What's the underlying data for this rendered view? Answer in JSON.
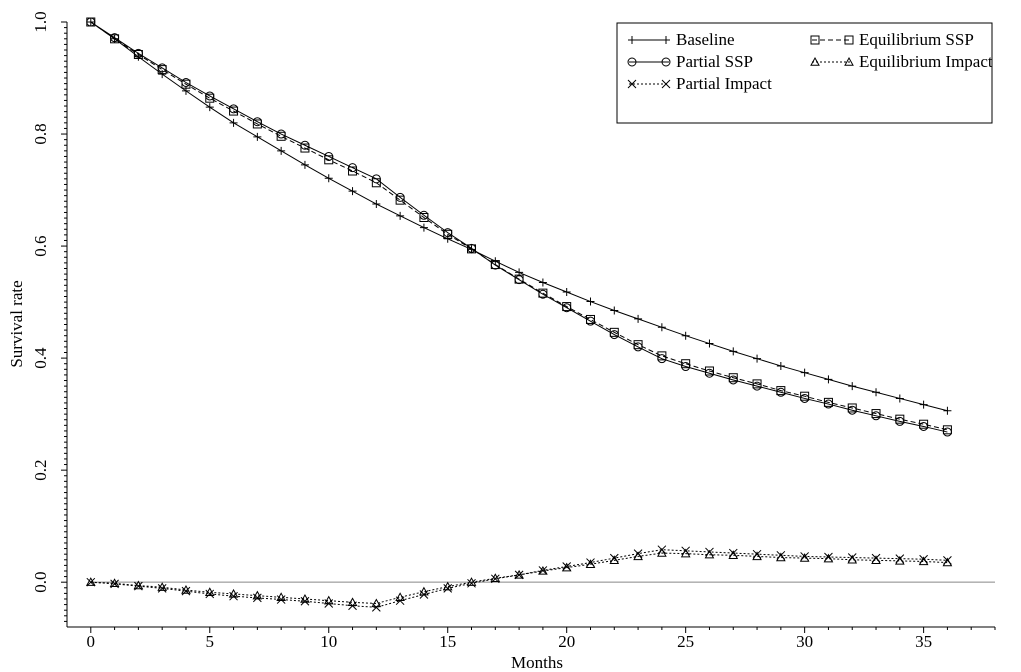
{
  "chart_data": {
    "type": "line",
    "title": "",
    "xlabel": "Months",
    "ylabel": "Survival rate",
    "xlim": [
      -1,
      38
    ],
    "ylim": [
      -0.08,
      1.0
    ],
    "x_ticks": [
      0,
      5,
      10,
      15,
      20,
      25,
      30,
      35
    ],
    "y_ticks": [
      0.0,
      0.2,
      0.4,
      0.6,
      0.8,
      1.0
    ],
    "y_tick_labels": [
      "0.0",
      "0.2",
      "0.4",
      "0.6",
      "0.8",
      "1.0"
    ],
    "reference_line_y": 0,
    "grid": false,
    "legend_placement": "top-right",
    "x": [
      0,
      1,
      2,
      3,
      4,
      5,
      6,
      7,
      8,
      9,
      10,
      11,
      12,
      13,
      14,
      15,
      16,
      17,
      18,
      19,
      20,
      21,
      22,
      23,
      24,
      25,
      26,
      27,
      28,
      29,
      30,
      31,
      32,
      33,
      34,
      35,
      36
    ],
    "series": [
      {
        "name": "Baseline",
        "marker": "plus",
        "dash": "solid",
        "color": "#000000",
        "values": [
          1.0,
          0.97,
          0.938,
          0.907,
          0.877,
          0.848,
          0.82,
          0.795,
          0.77,
          0.745,
          0.721,
          0.698,
          0.675,
          0.654,
          0.633,
          0.613,
          0.594,
          0.573,
          0.553,
          0.535,
          0.518,
          0.501,
          0.485,
          0.47,
          0.455,
          0.44,
          0.426,
          0.412,
          0.399,
          0.386,
          0.374,
          0.362,
          0.35,
          0.339,
          0.328,
          0.317,
          0.306
        ]
      },
      {
        "name": "Partial SSP",
        "marker": "circle",
        "dash": "solid",
        "color": "#000000",
        "values": [
          1.0,
          0.972,
          0.944,
          0.918,
          0.892,
          0.868,
          0.845,
          0.822,
          0.8,
          0.78,
          0.76,
          0.74,
          0.72,
          0.687,
          0.655,
          0.624,
          0.596,
          0.566,
          0.54,
          0.514,
          0.49,
          0.466,
          0.442,
          0.42,
          0.399,
          0.385,
          0.373,
          0.361,
          0.35,
          0.339,
          0.328,
          0.318,
          0.307,
          0.297,
          0.287,
          0.278,
          0.268
        ]
      },
      {
        "name": "Partial Impact",
        "marker": "x",
        "dash": "dotted",
        "color": "#000000",
        "values": [
          0.0,
          -0.003,
          -0.007,
          -0.011,
          -0.016,
          -0.021,
          -0.025,
          -0.028,
          -0.031,
          -0.034,
          -0.038,
          -0.042,
          -0.045,
          -0.033,
          -0.022,
          -0.011,
          -0.002,
          0.006,
          0.013,
          0.021,
          0.028,
          0.035,
          0.043,
          0.051,
          0.058,
          0.056,
          0.054,
          0.052,
          0.05,
          0.048,
          0.046,
          0.045,
          0.044,
          0.043,
          0.042,
          0.041,
          0.039
        ]
      },
      {
        "name": "Equilibrium SSP",
        "marker": "square",
        "dash": "dashed",
        "color": "#000000",
        "values": [
          1.0,
          0.97,
          0.942,
          0.915,
          0.889,
          0.864,
          0.841,
          0.818,
          0.796,
          0.775,
          0.754,
          0.734,
          0.713,
          0.682,
          0.651,
          0.621,
          0.595,
          0.567,
          0.541,
          0.516,
          0.492,
          0.469,
          0.446,
          0.424,
          0.404,
          0.39,
          0.377,
          0.365,
          0.354,
          0.342,
          0.332,
          0.321,
          0.311,
          0.301,
          0.291,
          0.282,
          0.272
        ]
      },
      {
        "name": "Equilibrium Impact",
        "marker": "triangle",
        "dash": "dotted",
        "color": "#000000",
        "values": [
          0.0,
          -0.002,
          -0.006,
          -0.009,
          -0.014,
          -0.018,
          -0.021,
          -0.024,
          -0.027,
          -0.03,
          -0.033,
          -0.036,
          -0.038,
          -0.027,
          -0.017,
          -0.008,
          0.0,
          0.007,
          0.013,
          0.02,
          0.026,
          0.032,
          0.039,
          0.046,
          0.052,
          0.051,
          0.049,
          0.048,
          0.046,
          0.044,
          0.043,
          0.042,
          0.04,
          0.039,
          0.038,
          0.037,
          0.035
        ]
      }
    ]
  }
}
